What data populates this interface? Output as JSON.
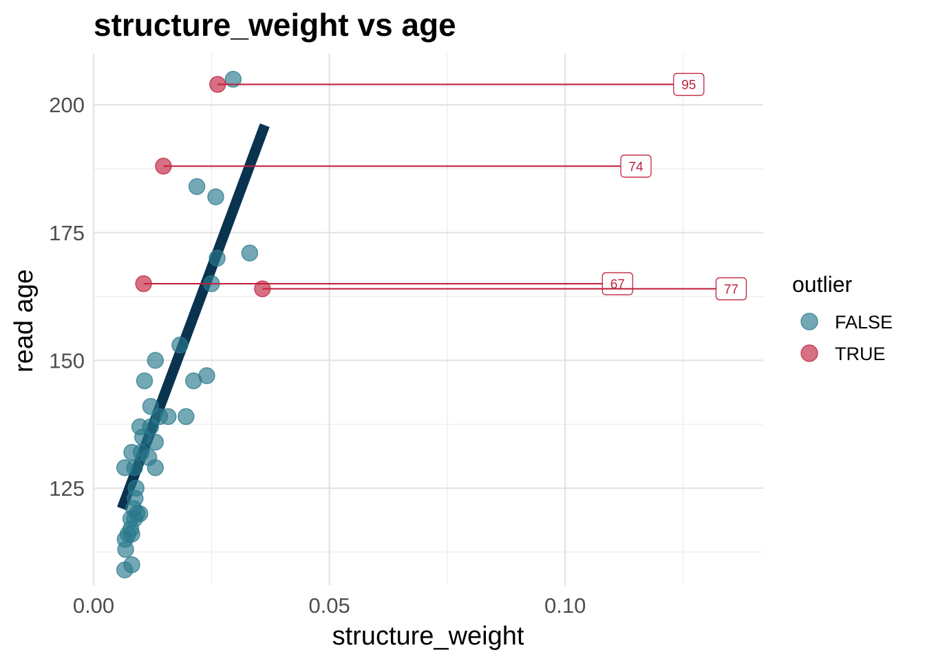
{
  "chart_data": {
    "type": "scatter",
    "title": "structure_weight vs age",
    "xlabel": "structure_weight",
    "ylabel": "read age",
    "xlim": [
      0.0,
      0.142
    ],
    "ylim": [
      106,
      210
    ],
    "x_ticks": [
      {
        "value": 0.0,
        "label": "0.00"
      },
      {
        "value": 0.05,
        "label": "0.05"
      },
      {
        "value": 0.1,
        "label": "0.10"
      }
    ],
    "x_minor_ticks": [
      0.025,
      0.075,
      0.125
    ],
    "y_ticks": [
      {
        "value": 125,
        "label": "125"
      },
      {
        "value": 150,
        "label": "150"
      },
      {
        "value": 175,
        "label": "175"
      },
      {
        "value": 200,
        "label": "200"
      }
    ],
    "y_minor_ticks": [
      112.5,
      137.5,
      162.5,
      187.5
    ],
    "grid": true,
    "legend": {
      "title": "outlier",
      "position": "right",
      "entries": [
        {
          "label": "FALSE",
          "color": "#2a7a8c"
        },
        {
          "label": "TRUE",
          "color": "#c0233f"
        }
      ]
    },
    "series": [
      {
        "name": "FALSE",
        "color": "#2a7a8c",
        "points": [
          {
            "x": 0.0066,
            "y": 109
          },
          {
            "x": 0.0081,
            "y": 110
          },
          {
            "x": 0.0068,
            "y": 113
          },
          {
            "x": 0.0067,
            "y": 115
          },
          {
            "x": 0.0073,
            "y": 116
          },
          {
            "x": 0.0081,
            "y": 116
          },
          {
            "x": 0.0079,
            "y": 117
          },
          {
            "x": 0.0079,
            "y": 119
          },
          {
            "x": 0.0087,
            "y": 119
          },
          {
            "x": 0.0092,
            "y": 120
          },
          {
            "x": 0.0098,
            "y": 120
          },
          {
            "x": 0.0085,
            "y": 121
          },
          {
            "x": 0.0088,
            "y": 123
          },
          {
            "x": 0.009,
            "y": 125
          },
          {
            "x": 0.0066,
            "y": 129
          },
          {
            "x": 0.0087,
            "y": 129
          },
          {
            "x": 0.0131,
            "y": 129
          },
          {
            "x": 0.0117,
            "y": 131
          },
          {
            "x": 0.0081,
            "y": 132
          },
          {
            "x": 0.0101,
            "y": 132
          },
          {
            "x": 0.0131,
            "y": 134
          },
          {
            "x": 0.0104,
            "y": 135
          },
          {
            "x": 0.0121,
            "y": 137
          },
          {
            "x": 0.0098,
            "y": 137
          },
          {
            "x": 0.0158,
            "y": 139
          },
          {
            "x": 0.014,
            "y": 139
          },
          {
            "x": 0.0196,
            "y": 139
          },
          {
            "x": 0.0121,
            "y": 141
          },
          {
            "x": 0.0108,
            "y": 146
          },
          {
            "x": 0.0212,
            "y": 146
          },
          {
            "x": 0.024,
            "y": 147
          },
          {
            "x": 0.0131,
            "y": 150
          },
          {
            "x": 0.0183,
            "y": 153
          },
          {
            "x": 0.025,
            "y": 165
          },
          {
            "x": 0.0262,
            "y": 170
          },
          {
            "x": 0.0331,
            "y": 171
          },
          {
            "x": 0.0259,
            "y": 182
          },
          {
            "x": 0.0219,
            "y": 184
          },
          {
            "x": 0.0296,
            "y": 205
          }
        ]
      },
      {
        "name": "TRUE",
        "color": "#c0233f",
        "points": [
          {
            "x": 0.0263,
            "y": 204,
            "label": "95",
            "label_x": 0.1262
          },
          {
            "x": 0.0148,
            "y": 188,
            "label": "74",
            "label_x": 0.115
          },
          {
            "x": 0.0106,
            "y": 165,
            "label": "67",
            "label_x": 0.1111
          },
          {
            "x": 0.0358,
            "y": 164,
            "label": "77",
            "label_x": 0.1352
          }
        ]
      }
    ],
    "trend_line": {
      "color": "#0a3350",
      "from": {
        "x": 0.006,
        "y": 121
      },
      "to": {
        "x": 0.0363,
        "y": 196
      }
    }
  }
}
